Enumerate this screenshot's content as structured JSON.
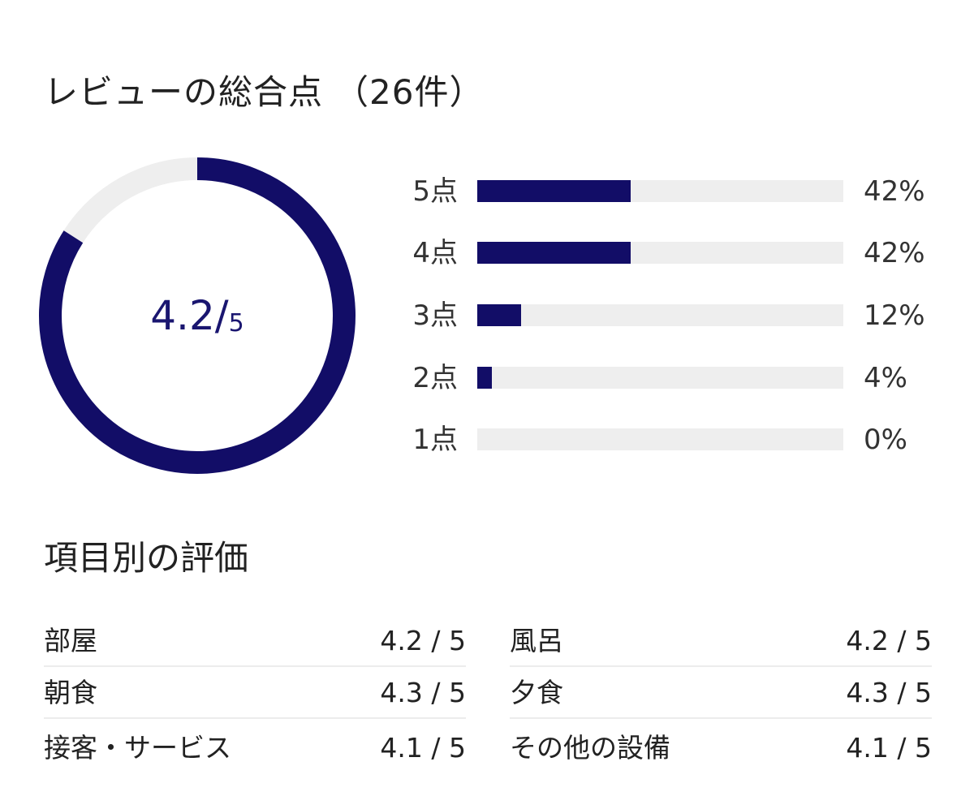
{
  "header": {
    "title": "レビューの総合点",
    "count": "（26件）"
  },
  "overall": {
    "score": "4.2",
    "separator": "/",
    "max": "5",
    "ratio": 0.84,
    "ring_color": "#120d67",
    "track_color": "#eeeeee"
  },
  "distribution": [
    {
      "label": "5点",
      "percent": 42,
      "percent_label": "42%"
    },
    {
      "label": "4点",
      "percent": 42,
      "percent_label": "42%"
    },
    {
      "label": "3点",
      "percent": 12,
      "percent_label": "12%"
    },
    {
      "label": "2点",
      "percent": 4,
      "percent_label": "4%"
    },
    {
      "label": "1点",
      "percent": 0,
      "percent_label": "0%"
    }
  ],
  "categories_section": {
    "title": "項目別の評価",
    "items": [
      {
        "name": "部屋",
        "score": "4.2 / 5"
      },
      {
        "name": "風呂",
        "score": "4.2 / 5"
      },
      {
        "name": "朝食",
        "score": "4.3 / 5"
      },
      {
        "name": "夕食",
        "score": "4.3 / 5"
      },
      {
        "name": "接客・サービス",
        "score": "4.1 / 5"
      },
      {
        "name": "その他の設備",
        "score": "4.1 / 5"
      }
    ]
  }
}
